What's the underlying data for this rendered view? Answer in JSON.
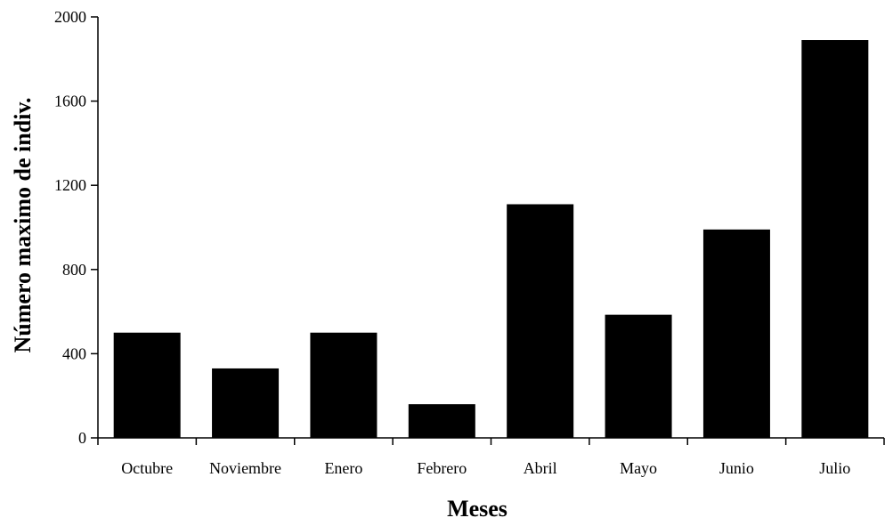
{
  "chart_data": {
    "type": "bar",
    "categories": [
      "Octubre",
      "Noviembre",
      "Enero",
      "Febrero",
      "Abril",
      "Mayo",
      "Junio",
      "Julio"
    ],
    "values": [
      500,
      330,
      500,
      160,
      1110,
      585,
      990,
      1890
    ],
    "xlabel": "Meses",
    "ylabel": "Número maximo de indiv.",
    "ylim": [
      0,
      2000
    ],
    "yticks": [
      0,
      400,
      800,
      1200,
      1600,
      2000
    ],
    "grid": false,
    "legend": "none",
    "bar_color": "#000000"
  }
}
